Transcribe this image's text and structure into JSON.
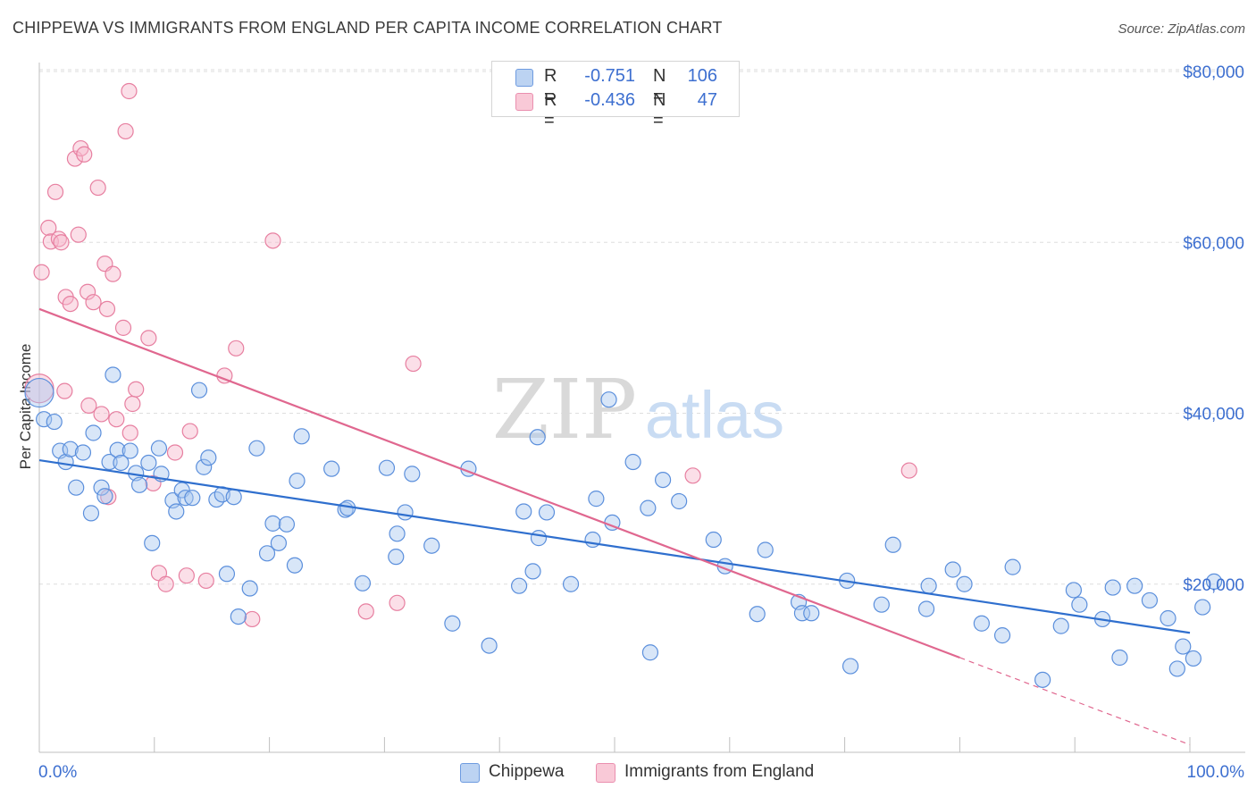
{
  "header": {
    "title": "CHIPPEWA VS IMMIGRANTS FROM ENGLAND PER CAPITA INCOME CORRELATION CHART",
    "source": "Source: ZipAtlas.com"
  },
  "watermark": {
    "zip": "ZIP",
    "atlas": "atlas"
  },
  "legend": {
    "r_label": "R =",
    "n_label": "N =",
    "rows": [
      {
        "r": "-0.751",
        "n": "106"
      },
      {
        "r": "-0.436",
        "n": "47"
      }
    ]
  },
  "colors": {
    "chippewa_fill": "#a9c7f0",
    "chippewa_stroke": "#5b8fdc",
    "chippewa_line": "#2f6fce",
    "england_fill": "#f7b8cb",
    "england_stroke": "#e77fa0",
    "england_line": "#e0678f",
    "axis_text": "#3d6fd0",
    "grid": "#dedede"
  },
  "chart_data": {
    "type": "scatter",
    "title": "CHIPPEWA VS IMMIGRANTS FROM ENGLAND PER CAPITA INCOME CORRELATION CHART",
    "xlabel": "",
    "ylabel": "Per Capita Income",
    "x_tick_labels": [
      "0.0%",
      "100.0%"
    ],
    "y_tick_labels": [
      "$20,000",
      "$40,000",
      "$60,000",
      "$80,000"
    ],
    "y_ticks": [
      20000,
      40000,
      60000,
      80000
    ],
    "xlim": [
      0,
      100
    ],
    "ylim": [
      2000,
      82000
    ],
    "grid": true,
    "legend_position": "top-center",
    "series": [
      {
        "name": "Chippewa",
        "trend": {
          "x0": 0,
          "y0": 34500,
          "x1": 100,
          "y1": 14300
        },
        "points": [
          [
            0,
            42.4
          ],
          [
            0.4,
            39.3
          ],
          [
            1.3,
            39
          ],
          [
            1.8,
            35.6
          ],
          [
            2.3,
            34.3
          ],
          [
            2.7,
            35.8
          ],
          [
            3.2,
            31.3
          ],
          [
            3.8,
            35.4
          ],
          [
            4.5,
            28.3
          ],
          [
            4.7,
            37.7
          ],
          [
            5.4,
            31.3
          ],
          [
            5.7,
            30.3
          ],
          [
            6.1,
            34.3
          ],
          [
            6.4,
            44.5
          ],
          [
            6.8,
            35.7
          ],
          [
            7.1,
            34.2
          ],
          [
            7.9,
            35.6
          ],
          [
            8.4,
            33
          ],
          [
            8.7,
            31.6
          ],
          [
            9.5,
            34.2
          ],
          [
            9.8,
            24.8
          ],
          [
            10.4,
            35.9
          ],
          [
            10.6,
            32.9
          ],
          [
            11.6,
            29.8
          ],
          [
            11.9,
            28.5
          ],
          [
            12.4,
            31
          ],
          [
            12.7,
            30.1
          ],
          [
            13.3,
            30.1
          ],
          [
            13.9,
            42.7
          ],
          [
            14.3,
            33.7
          ],
          [
            14.7,
            34.8
          ],
          [
            15.4,
            29.9
          ],
          [
            15.9,
            30.5
          ],
          [
            16.3,
            21.2
          ],
          [
            16.9,
            30.2
          ],
          [
            17.3,
            16.2
          ],
          [
            18.3,
            19.5
          ],
          [
            18.9,
            35.9
          ],
          [
            19.8,
            23.6
          ],
          [
            20.3,
            27.1
          ],
          [
            20.8,
            24.8
          ],
          [
            21.5,
            27
          ],
          [
            22.2,
            22.2
          ],
          [
            22.4,
            32.1
          ],
          [
            22.8,
            37.3
          ],
          [
            25.4,
            33.5
          ],
          [
            26.6,
            28.7
          ],
          [
            26.8,
            28.9
          ],
          [
            28.1,
            20.1
          ],
          [
            30.2,
            33.6
          ],
          [
            31,
            23.2
          ],
          [
            31.1,
            25.9
          ],
          [
            31.8,
            28.4
          ],
          [
            32.4,
            32.9
          ],
          [
            34.1,
            24.5
          ],
          [
            35.9,
            15.4
          ],
          [
            37.3,
            33.5
          ],
          [
            39.1,
            12.8
          ],
          [
            41.7,
            19.8
          ],
          [
            42.1,
            28.5
          ],
          [
            42.9,
            21.5
          ],
          [
            43.3,
            37.2
          ],
          [
            43.4,
            25.4
          ],
          [
            44.1,
            28.4
          ],
          [
            46.2,
            20
          ],
          [
            48.1,
            25.2
          ],
          [
            48.4,
            30
          ],
          [
            49.5,
            41.6
          ],
          [
            49.8,
            27.2
          ],
          [
            51.6,
            34.3
          ],
          [
            52.9,
            28.9
          ],
          [
            53.1,
            12
          ],
          [
            54.2,
            32.2
          ],
          [
            55.6,
            29.7
          ],
          [
            58.6,
            25.2
          ],
          [
            59.6,
            22.1
          ],
          [
            62.4,
            16.5
          ],
          [
            63.1,
            24
          ],
          [
            66,
            17.9
          ],
          [
            66.3,
            16.6
          ],
          [
            67.1,
            16.6
          ],
          [
            70.2,
            20.4
          ],
          [
            70.5,
            10.4
          ],
          [
            73.2,
            17.6
          ],
          [
            74.2,
            24.6
          ],
          [
            77.1,
            17.1
          ],
          [
            77.3,
            19.8
          ],
          [
            79.4,
            21.7
          ],
          [
            80.4,
            20
          ],
          [
            81.9,
            15.4
          ],
          [
            83.7,
            14
          ],
          [
            84.6,
            22
          ],
          [
            87.2,
            8.8
          ],
          [
            88.8,
            15.1
          ],
          [
            89.9,
            19.3
          ],
          [
            90.4,
            17.6
          ],
          [
            92.4,
            15.9
          ],
          [
            93.3,
            19.6
          ],
          [
            93.9,
            11.4
          ],
          [
            95.2,
            19.8
          ],
          [
            96.5,
            18.1
          ],
          [
            98.1,
            16
          ],
          [
            98.9,
            10.1
          ],
          [
            99.4,
            12.7
          ],
          [
            100.3,
            11.3
          ],
          [
            101.1,
            17.3
          ],
          [
            102.1,
            20.3
          ]
        ]
      },
      {
        "name": "Immigrants from England",
        "trend": {
          "x0": 0,
          "y0": 52200,
          "x1": 80,
          "y1": 11400
        },
        "trend_dashed": {
          "x0": 80,
          "y0": 11400,
          "x1": 100,
          "y1": 1200
        },
        "points": [
          [
            0,
            42.9
          ],
          [
            0.2,
            56.5
          ],
          [
            0.8,
            61.7
          ],
          [
            1,
            60.1
          ],
          [
            1.4,
            65.9
          ],
          [
            1.7,
            60.4
          ],
          [
            1.9,
            60
          ],
          [
            2.2,
            42.6
          ],
          [
            2.3,
            53.6
          ],
          [
            2.7,
            52.8
          ],
          [
            3.1,
            69.8
          ],
          [
            3.4,
            60.9
          ],
          [
            3.6,
            71
          ],
          [
            3.9,
            70.3
          ],
          [
            4.2,
            54.2
          ],
          [
            4.3,
            40.9
          ],
          [
            4.7,
            53
          ],
          [
            5.1,
            66.4
          ],
          [
            5.4,
            39.9
          ],
          [
            5.7,
            57.5
          ],
          [
            5.9,
            52.2
          ],
          [
            6,
            30.2
          ],
          [
            6.4,
            56.3
          ],
          [
            6.7,
            39.3
          ],
          [
            7.3,
            50
          ],
          [
            7.5,
            73
          ],
          [
            7.8,
            77.7
          ],
          [
            7.9,
            37.7
          ],
          [
            8.1,
            41.1
          ],
          [
            8.4,
            42.8
          ],
          [
            9.5,
            48.8
          ],
          [
            9.9,
            31.8
          ],
          [
            10.4,
            21.3
          ],
          [
            11,
            20
          ],
          [
            11.8,
            35.4
          ],
          [
            12.8,
            21
          ],
          [
            13.1,
            37.9
          ],
          [
            14.5,
            20.4
          ],
          [
            16.1,
            44.4
          ],
          [
            17.1,
            47.6
          ],
          [
            18.5,
            15.9
          ],
          [
            20.3,
            60.2
          ],
          [
            28.4,
            16.8
          ],
          [
            31.1,
            17.8
          ],
          [
            32.5,
            45.8
          ],
          [
            56.8,
            32.7
          ],
          [
            75.6,
            33.3
          ]
        ]
      }
    ]
  },
  "bottom_legend": [
    {
      "label": "Chippewa"
    },
    {
      "label": "Immigrants from England"
    }
  ]
}
